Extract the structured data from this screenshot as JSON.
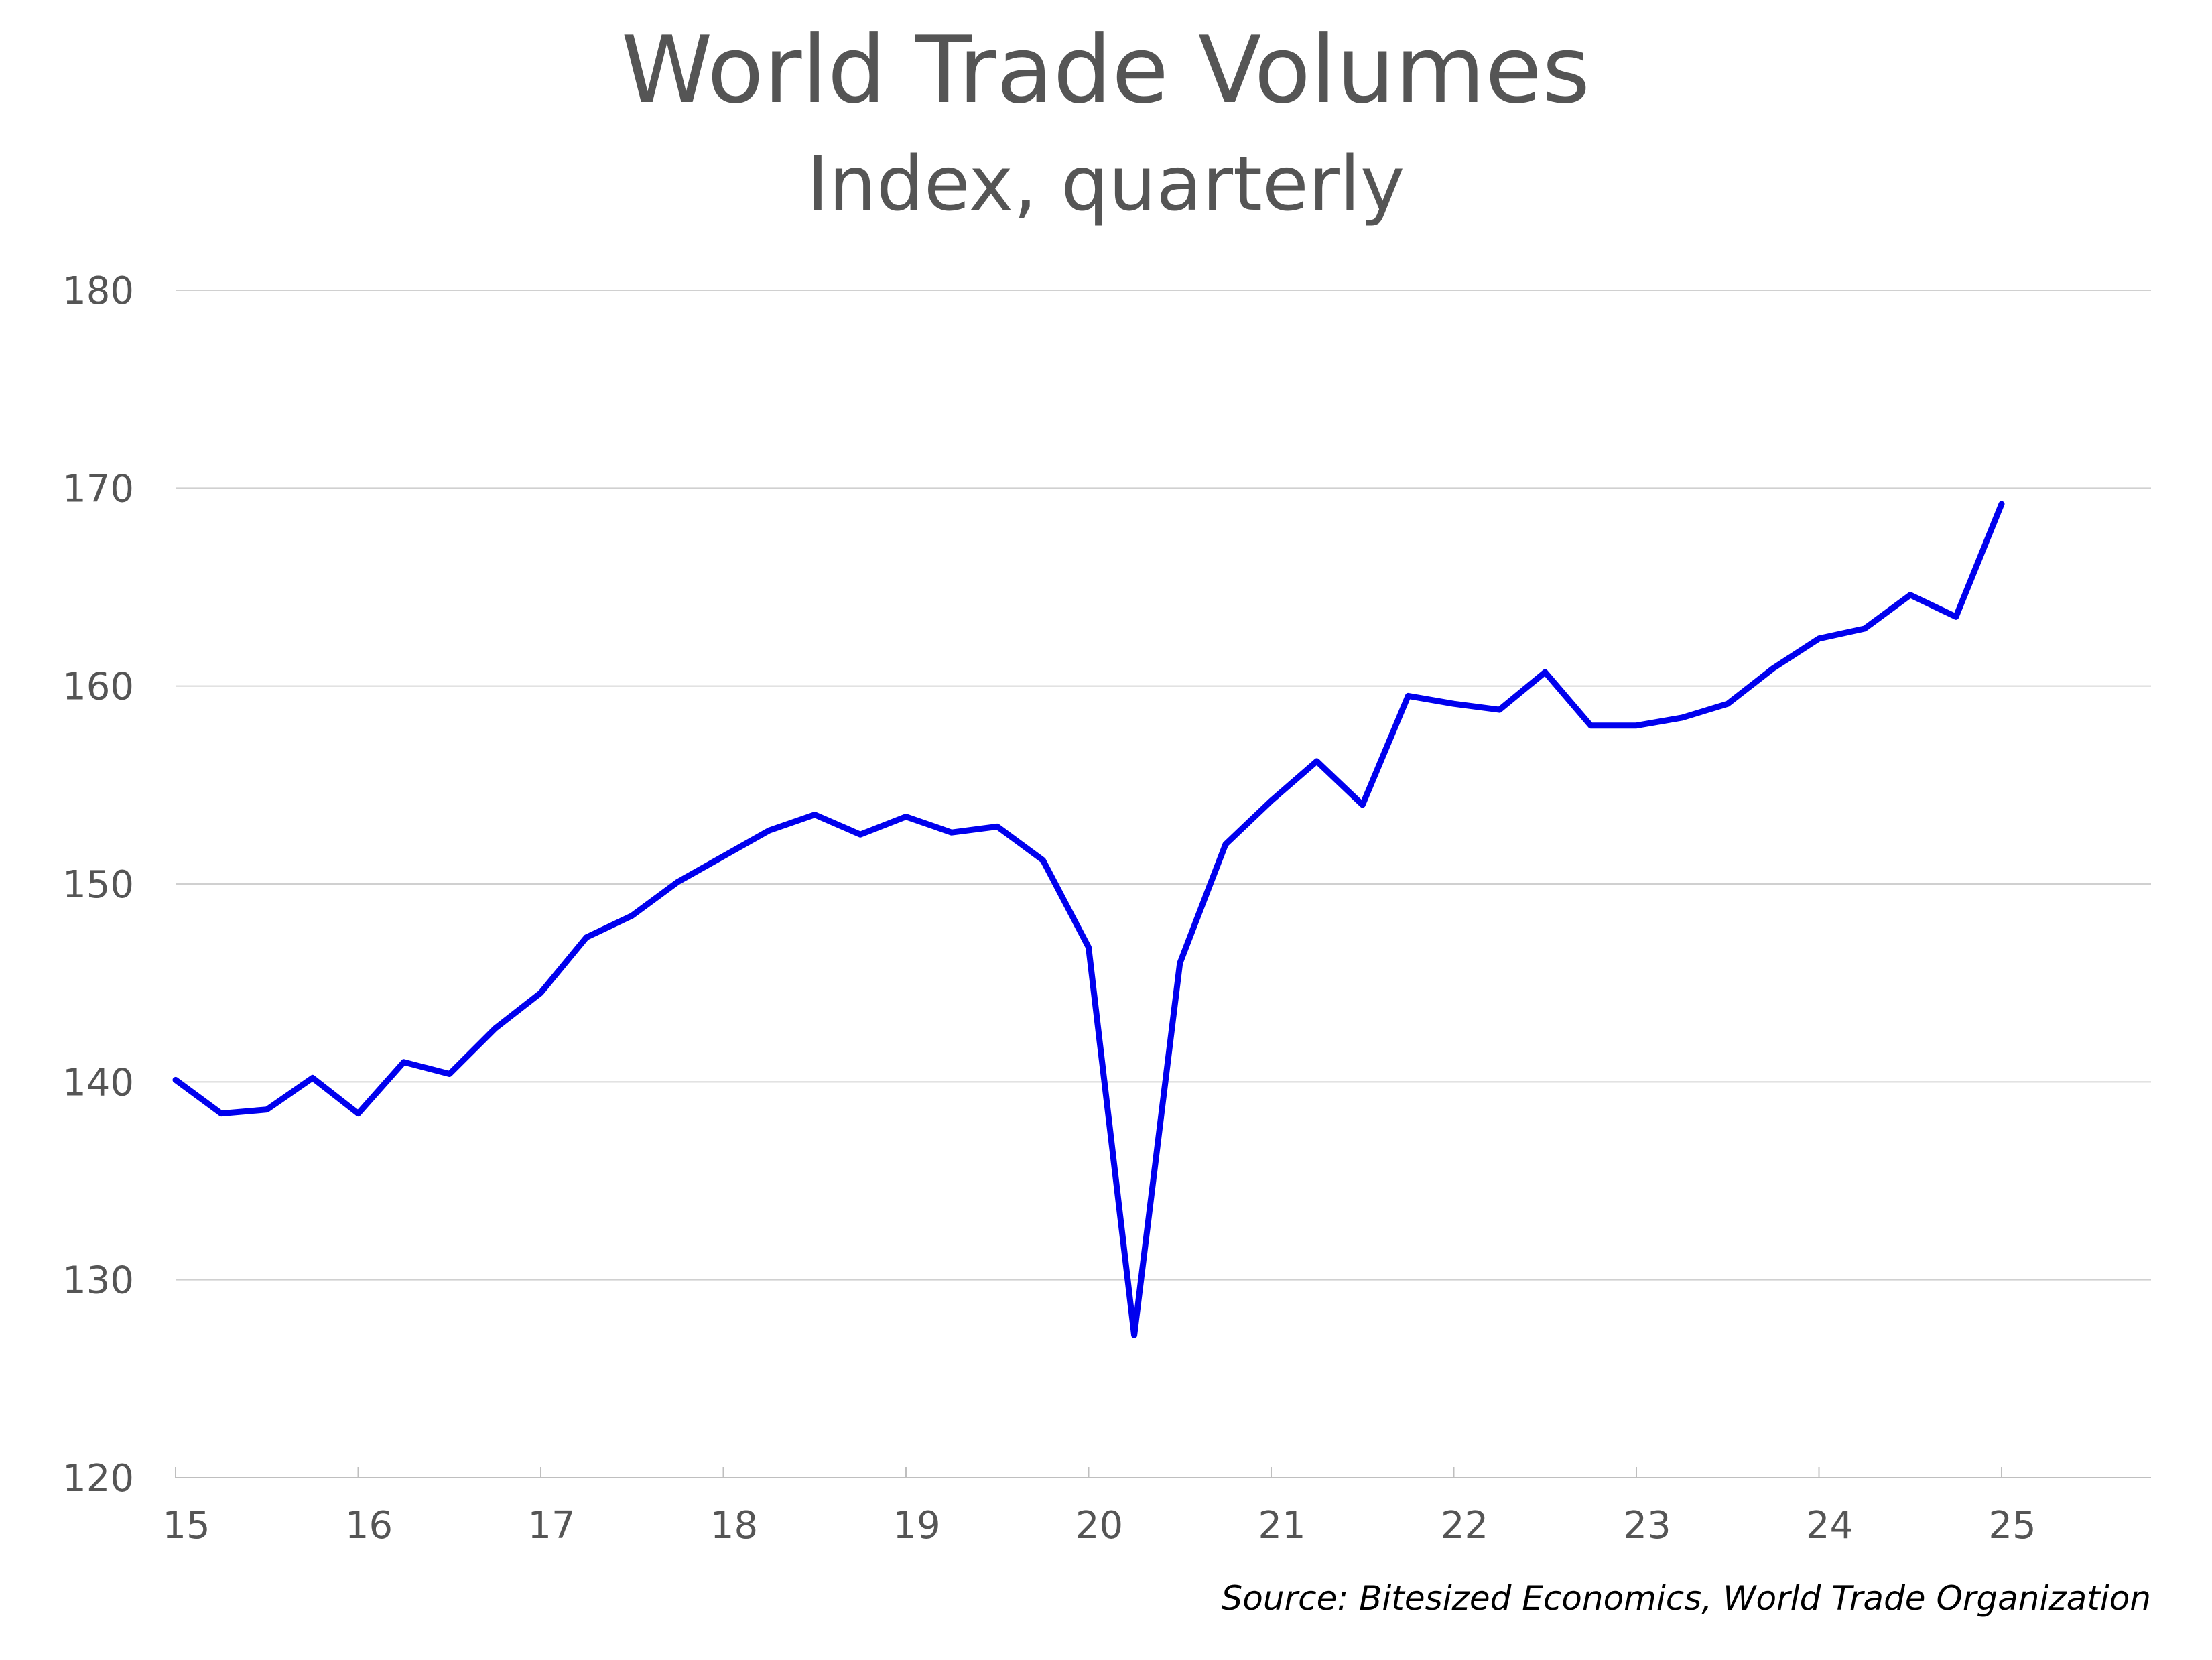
{
  "chart_data": {
    "type": "line",
    "title": "World Trade Volumes",
    "subtitle": "Index, quarterly",
    "source": "Source: Bitesized Economics, World Trade Organization",
    "xlabel": "",
    "ylabel": "",
    "ylim": [
      120,
      180
    ],
    "yticks": [
      120,
      130,
      140,
      150,
      160,
      170,
      180
    ],
    "xlim": [
      15,
      25.83
    ],
    "xticks": [
      "15",
      "16",
      "17",
      "18",
      "19",
      "20",
      "21",
      "22",
      "23",
      "24",
      "25"
    ],
    "grid": true,
    "line_color": "#0000ee",
    "series": [
      {
        "x": [
          15.0,
          15.25,
          15.5,
          15.75,
          16.0,
          16.25,
          16.5,
          16.75,
          17.0,
          17.25,
          17.5,
          17.75,
          18.0,
          18.25,
          18.5,
          18.75,
          19.0,
          19.25,
          19.5,
          19.75,
          20.0,
          20.25,
          20.5,
          20.75,
          21.0,
          21.25,
          21.5,
          21.75,
          22.0,
          22.25,
          22.5,
          22.75,
          23.0,
          23.25,
          23.5,
          23.75,
          24.0,
          24.25,
          24.5,
          24.75,
          25.0
        ],
        "values": [
          140.1,
          138.4,
          138.6,
          140.2,
          138.4,
          141.0,
          140.4,
          142.7,
          144.5,
          147.3,
          148.4,
          150.1,
          151.4,
          152.7,
          153.5,
          152.5,
          153.4,
          152.6,
          152.9,
          151.2,
          146.8,
          127.2,
          146.0,
          152.0,
          154.2,
          156.2,
          154.0,
          159.5,
          159.1,
          158.8,
          160.7,
          158.0,
          158.0,
          158.4,
          159.1,
          160.9,
          162.4,
          162.9,
          164.6,
          163.5,
          169.2
        ]
      }
    ]
  }
}
